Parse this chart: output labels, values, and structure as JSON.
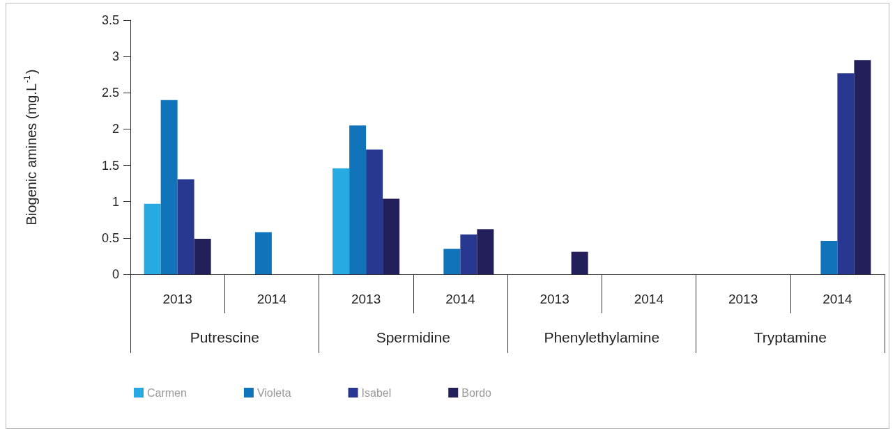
{
  "chart_data": {
    "type": "bar",
    "ylabel": "Biogenic amines (mg.L$^{-1}$)",
    "categories": [
      "2013",
      "2014",
      "2013",
      "2014",
      "2013",
      "2014",
      "2013",
      "2014"
    ],
    "annotations": [
      "Putrescine",
      "Spermidine",
      "Phenylethylamine",
      "Tryptamine"
    ],
    "series": [
      {
        "name": "Carmen",
        "color": "#27aae1",
        "values": [
          0.97,
          0,
          1.46,
          0,
          0,
          0,
          0,
          0
        ]
      },
      {
        "name": "Violeta",
        "color": "#1174bb",
        "values": [
          2.4,
          0.58,
          2.05,
          0.35,
          0,
          0,
          0,
          0.46
        ]
      },
      {
        "name": "Isabel",
        "color": "#283891",
        "values": [
          1.31,
          0,
          1.72,
          0.55,
          0,
          0,
          0,
          2.77
        ]
      },
      {
        "name": "Bordo",
        "color": "#221f5a",
        "values": [
          0.49,
          0,
          1.04,
          0.62,
          0.31,
          0,
          0,
          2.95
        ]
      }
    ],
    "ylim": [
      0,
      3.5
    ],
    "yticks": [
      0,
      0.5,
      1,
      1.5,
      2,
      2.5,
      3,
      3.5
    ],
    "grid": false,
    "legend": "bottom left"
  }
}
